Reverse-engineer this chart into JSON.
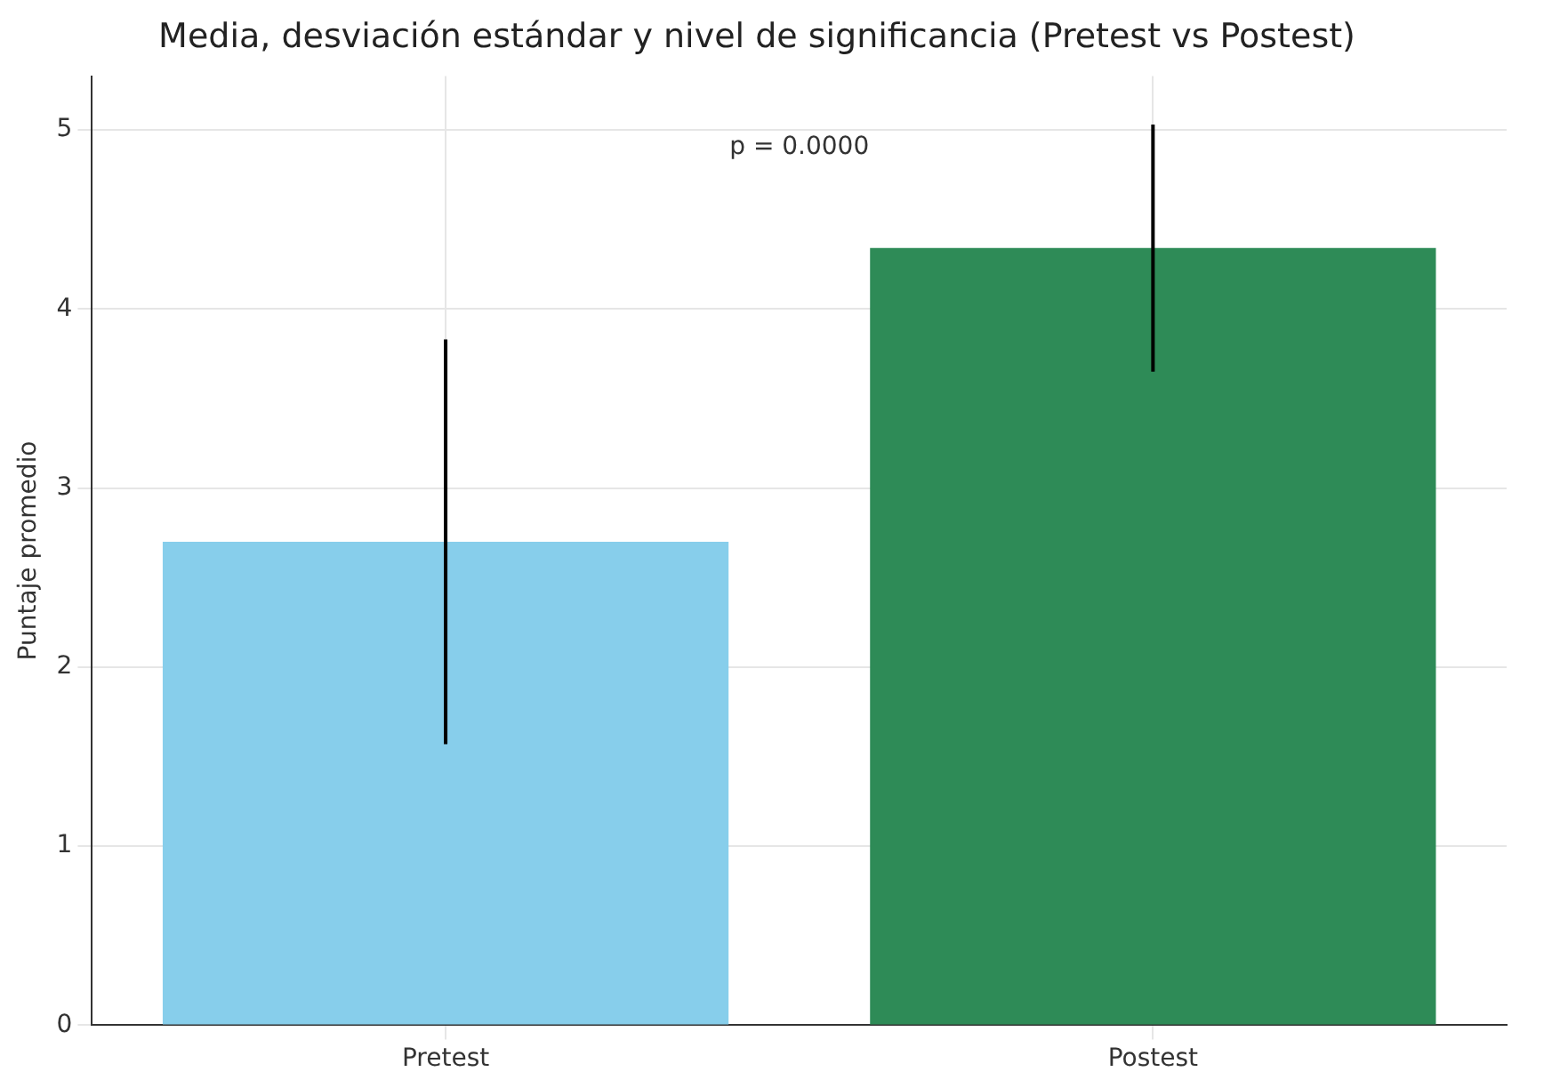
{
  "chart_data": {
    "type": "bar",
    "title": "Media, desviación estándar y nivel de significancia (Pretest vs Postest)",
    "ylabel": "Puntaje promedio",
    "categories": [
      "Pretest",
      "Postest"
    ],
    "values": [
      2.7,
      4.34
    ],
    "colors": [
      "#87ceeb",
      "#2e8b57"
    ],
    "errors": [
      1.13,
      0.69
    ],
    "ylim": [
      0,
      5.3
    ],
    "yticks": [
      0,
      1,
      2,
      3,
      4,
      5
    ],
    "grid": true,
    "legend": false,
    "annotations": [
      "p = 0.0000"
    ]
  }
}
